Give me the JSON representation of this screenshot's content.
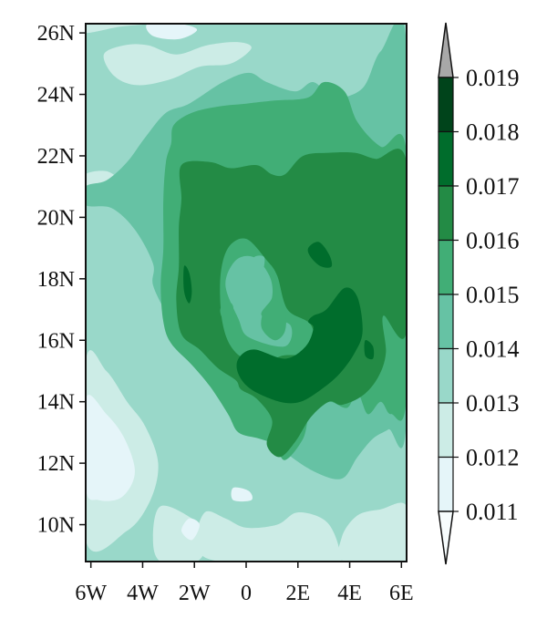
{
  "chart_data": {
    "type": "heatmap",
    "title": "",
    "xlabel": "",
    "ylabel": "",
    "x_ticks": [
      "6W",
      "4W",
      "2W",
      "0",
      "2E",
      "4E",
      "6E"
    ],
    "y_ticks": [
      "10N",
      "12N",
      "14N",
      "16N",
      "18N",
      "20N",
      "22N",
      "24N",
      "26N"
    ],
    "x_tick_values": [
      -6,
      -4,
      -2,
      0,
      2,
      4,
      6
    ],
    "y_tick_values": [
      10,
      12,
      14,
      16,
      18,
      20,
      22,
      24,
      26
    ],
    "xlim": [
      -6.2,
      6.2
    ],
    "ylim": [
      8.8,
      26.3
    ],
    "colorbar": {
      "labels": [
        "0.011",
        "0.012",
        "0.013",
        "0.014",
        "0.015",
        "0.016",
        "0.017",
        "0.018",
        "0.019"
      ],
      "levels": [
        0.011,
        0.012,
        0.013,
        0.014,
        0.015,
        0.016,
        0.017,
        0.018,
        0.019
      ],
      "colors": [
        "#f7fcfd",
        "#e5f5f9",
        "#ccece6",
        "#99d8c9",
        "#66c2a4",
        "#41ae76",
        "#238b45",
        "#006d2c",
        "#00441b"
      ],
      "over_color": "#a8a8a8",
      "extend": "both"
    },
    "regions": [
      {
        "level": 0.014,
        "points": [
          [
            -6.2,
            26.3
          ],
          [
            6.2,
            26.3
          ],
          [
            6.2,
            8.8
          ],
          [
            -6.2,
            8.8
          ]
        ]
      },
      {
        "level": 0.013,
        "points": [
          [
            -6.2,
            26.0
          ],
          [
            -4.9,
            26.2
          ],
          [
            -3.8,
            26.3
          ],
          [
            -6.2,
            26.3
          ]
        ]
      },
      {
        "level": 0.013,
        "points": [
          [
            -5.5,
            25.3
          ],
          [
            -4.7,
            25.6
          ],
          [
            -3.8,
            25.6
          ],
          [
            -2.7,
            25.3
          ],
          [
            -1.5,
            25.6
          ],
          [
            -0.3,
            25.7
          ],
          [
            0.2,
            25.5
          ],
          [
            -0.6,
            25.0
          ],
          [
            -1.8,
            24.9
          ],
          [
            -2.9,
            24.5
          ],
          [
            -4.2,
            24.3
          ],
          [
            -5.1,
            24.6
          ]
        ]
      },
      {
        "level": 0.013,
        "points": [
          [
            -6.2,
            15.3
          ],
          [
            -5.4,
            15.0
          ],
          [
            -4.6,
            14.0
          ],
          [
            -3.9,
            13.2
          ],
          [
            -3.4,
            12.0
          ],
          [
            -3.7,
            10.8
          ],
          [
            -4.6,
            9.8
          ],
          [
            -6.2,
            9.5
          ]
        ]
      },
      {
        "level": 0.013,
        "points": [
          [
            -3.3,
            10.6
          ],
          [
            -2.1,
            10.2
          ],
          [
            -1.5,
            9.6
          ],
          [
            -1.9,
            8.8
          ],
          [
            -3.3,
            8.8
          ],
          [
            -3.6,
            9.6
          ]
        ]
      },
      {
        "level": 0.013,
        "points": [
          [
            -1.6,
            10.4
          ],
          [
            -0.8,
            10.2
          ],
          [
            0.0,
            9.9
          ],
          [
            1.2,
            10.0
          ],
          [
            2.0,
            10.4
          ],
          [
            3.1,
            10.1
          ],
          [
            3.6,
            9.2
          ],
          [
            3.4,
            8.8
          ],
          [
            -1.0,
            8.8
          ],
          [
            -1.9,
            9.4
          ]
        ]
      },
      {
        "level": 0.013,
        "points": [
          [
            4.3,
            10.3
          ],
          [
            5.2,
            10.5
          ],
          [
            6.2,
            10.6
          ],
          [
            6.2,
            8.8
          ],
          [
            3.8,
            8.8
          ],
          [
            3.7,
            9.6
          ]
        ]
      },
      {
        "level": 0.013,
        "points": [
          [
            -6.2,
            21.4
          ],
          [
            -5.4,
            21.5
          ],
          [
            -5.0,
            21.2
          ],
          [
            -5.6,
            20.8
          ],
          [
            -6.2,
            20.9
          ]
        ]
      },
      {
        "level": 0.012,
        "points": [
          [
            -3.8,
            26.3
          ],
          [
            -2.6,
            26.3
          ],
          [
            -1.9,
            26.1
          ],
          [
            -2.6,
            25.8
          ],
          [
            -3.6,
            25.9
          ]
        ]
      },
      {
        "level": 0.012,
        "points": [
          [
            -6.2,
            14.1
          ],
          [
            -5.4,
            13.6
          ],
          [
            -4.7,
            12.8
          ],
          [
            -4.3,
            11.7
          ],
          [
            -4.8,
            10.9
          ],
          [
            -5.7,
            10.8
          ],
          [
            -6.2,
            11.2
          ]
        ]
      },
      {
        "level": 0.012,
        "points": [
          [
            -2.2,
            10.2
          ],
          [
            -1.8,
            10.0
          ],
          [
            -2.1,
            9.5
          ],
          [
            -2.5,
            9.8
          ]
        ]
      },
      {
        "level": 0.012,
        "points": [
          [
            -0.5,
            11.2
          ],
          [
            0.1,
            11.1
          ],
          [
            0.2,
            10.8
          ],
          [
            -0.5,
            10.8
          ]
        ]
      },
      {
        "level": 0.015,
        "points": [
          [
            -6.2,
            20.4
          ],
          [
            -5.2,
            20.3
          ],
          [
            -4.3,
            19.6
          ],
          [
            -3.6,
            18.5
          ],
          [
            -3.6,
            17.8
          ],
          [
            -3.1,
            16.9
          ],
          [
            -2.6,
            16.2
          ],
          [
            -1.6,
            15.6
          ],
          [
            -0.8,
            14.6
          ],
          [
            0.0,
            13.8
          ],
          [
            0.8,
            13.0
          ],
          [
            1.6,
            12.3
          ],
          [
            2.7,
            11.7
          ],
          [
            3.7,
            11.5
          ],
          [
            4.3,
            12.2
          ],
          [
            4.9,
            12.8
          ],
          [
            5.5,
            13.1
          ],
          [
            6.2,
            13.5
          ],
          [
            6.2,
            25.6
          ],
          [
            5.2,
            25.4
          ],
          [
            4.5,
            24.2
          ],
          [
            3.4,
            23.9
          ],
          [
            2.6,
            24.4
          ],
          [
            1.9,
            24.1
          ],
          [
            0.8,
            24.4
          ],
          [
            0.1,
            24.7
          ],
          [
            -0.9,
            24.4
          ],
          [
            -2.2,
            23.7
          ],
          [
            -3.1,
            23.4
          ],
          [
            -3.9,
            22.6
          ],
          [
            -4.6,
            21.8
          ],
          [
            -5.4,
            21.2
          ],
          [
            -6.2,
            21.0
          ]
        ]
      },
      {
        "level": 0.016,
        "points": [
          [
            -2.8,
            23.0
          ],
          [
            -2.1,
            23.4
          ],
          [
            -1.1,
            23.6
          ],
          [
            0.0,
            23.7
          ],
          [
            1.1,
            23.8
          ],
          [
            2.4,
            23.9
          ],
          [
            3.0,
            24.4
          ],
          [
            3.8,
            24.1
          ],
          [
            4.3,
            23.1
          ],
          [
            5.2,
            22.3
          ],
          [
            6.2,
            22.1
          ],
          [
            6.2,
            14.2
          ],
          [
            5.6,
            13.6
          ],
          [
            5.2,
            14.0
          ],
          [
            4.7,
            13.6
          ],
          [
            4.3,
            14.3
          ],
          [
            3.9,
            13.8
          ],
          [
            3.2,
            14.0
          ],
          [
            2.5,
            13.7
          ],
          [
            2.2,
            12.8
          ],
          [
            1.5,
            12.1
          ],
          [
            1.1,
            12.6
          ],
          [
            0.5,
            12.8
          ],
          [
            -0.3,
            13.0
          ],
          [
            -0.7,
            13.6
          ],
          [
            -1.4,
            14.5
          ],
          [
            -2.1,
            15.2
          ],
          [
            -2.9,
            15.9
          ],
          [
            -3.2,
            16.6
          ],
          [
            -3.3,
            17.8
          ],
          [
            -3.2,
            19.0
          ],
          [
            -3.2,
            20.6
          ],
          [
            -3.1,
            21.8
          ],
          [
            -2.9,
            22.4
          ]
        ]
      },
      {
        "level": 0.017,
        "points": [
          [
            -2.5,
            21.7
          ],
          [
            -1.4,
            21.8
          ],
          [
            -0.6,
            21.6
          ],
          [
            0.4,
            21.7
          ],
          [
            1.0,
            21.4
          ],
          [
            1.5,
            21.4
          ],
          [
            2.2,
            22.0
          ],
          [
            3.2,
            22.1
          ],
          [
            4.2,
            22.1
          ],
          [
            5.0,
            21.9
          ],
          [
            6.2,
            21.8
          ],
          [
            6.2,
            16.3
          ],
          [
            5.3,
            16.8
          ],
          [
            5.4,
            15.6
          ],
          [
            5.1,
            14.8
          ],
          [
            4.5,
            14.2
          ],
          [
            3.7,
            13.9
          ],
          [
            3.2,
            14.0
          ],
          [
            2.5,
            13.5
          ],
          [
            1.9,
            12.7
          ],
          [
            1.3,
            12.2
          ],
          [
            0.8,
            12.6
          ],
          [
            1.0,
            13.4
          ],
          [
            0.4,
            14.1
          ],
          [
            -0.2,
            14.4
          ],
          [
            -0.4,
            14.7
          ],
          [
            -1.1,
            15.1
          ],
          [
            -1.8,
            15.7
          ],
          [
            -2.5,
            16.2
          ],
          [
            -2.7,
            17.3
          ],
          [
            -2.6,
            18.4
          ],
          [
            -2.6,
            19.7
          ],
          [
            -2.5,
            20.6
          ]
        ]
      },
      {
        "level": 0.016,
        "points": [
          [
            -1.0,
            18.0
          ],
          [
            -0.7,
            19.0
          ],
          [
            0.0,
            19.3
          ],
          [
            0.8,
            18.6
          ],
          [
            1.2,
            18.1
          ],
          [
            1.6,
            17.0
          ],
          [
            2.5,
            16.5
          ],
          [
            2.6,
            15.6
          ],
          [
            1.4,
            15.5
          ],
          [
            0.6,
            15.2
          ],
          [
            -0.4,
            15.6
          ],
          [
            -0.9,
            16.5
          ]
        ]
      },
      {
        "level": 0.015,
        "points": [
          [
            -0.8,
            17.8
          ],
          [
            -0.4,
            18.6
          ],
          [
            0.3,
            18.7
          ],
          [
            0.9,
            18.1
          ],
          [
            1.0,
            17.4
          ],
          [
            0.6,
            16.8
          ],
          [
            1.7,
            16.5
          ],
          [
            1.5,
            15.8
          ],
          [
            0.1,
            16.1
          ],
          [
            -0.3,
            16.7
          ]
        ]
      },
      {
        "level": 0.016,
        "points": [
          [
            0.7,
            17.0
          ],
          [
            1.1,
            17.3
          ],
          [
            1.5,
            17.0
          ],
          [
            1.5,
            16.3
          ],
          [
            1.1,
            16.0
          ],
          [
            0.6,
            16.4
          ]
        ]
      },
      {
        "level": 0.015,
        "points": [
          [
            0.2,
            18.3
          ],
          [
            0.3,
            18.7
          ],
          [
            0.7,
            18.7
          ],
          [
            0.6,
            18.2
          ]
        ]
      },
      {
        "level": 0.016,
        "points": [
          [
            -1.0,
            17.0
          ],
          [
            -0.8,
            17.3
          ],
          [
            -0.5,
            17.1
          ],
          [
            -0.6,
            16.6
          ],
          [
            -0.9,
            16.7
          ]
        ]
      },
      {
        "level": 0.018,
        "points": [
          [
            -0.3,
            15.4
          ],
          [
            0.3,
            15.7
          ],
          [
            1.5,
            15.4
          ],
          [
            2.3,
            15.8
          ],
          [
            2.6,
            16.4
          ],
          [
            2.4,
            16.6
          ],
          [
            2.6,
            16.8
          ],
          [
            3.1,
            17.0
          ],
          [
            3.8,
            17.7
          ],
          [
            4.3,
            17.4
          ],
          [
            4.5,
            16.3
          ],
          [
            4.2,
            15.6
          ],
          [
            3.6,
            14.9
          ],
          [
            2.9,
            14.4
          ],
          [
            2.1,
            14.0
          ],
          [
            1.3,
            14.0
          ],
          [
            0.2,
            14.4
          ],
          [
            -0.3,
            14.9
          ]
        ]
      },
      {
        "level": 0.018,
        "points": [
          [
            2.4,
            19.0
          ],
          [
            2.8,
            19.2
          ],
          [
            3.2,
            18.8
          ],
          [
            3.3,
            18.4
          ],
          [
            2.9,
            18.4
          ],
          [
            2.5,
            18.7
          ]
        ]
      },
      {
        "level": 0.018,
        "points": [
          [
            -2.4,
            18.4
          ],
          [
            -2.2,
            18.2
          ],
          [
            -2.1,
            17.6
          ],
          [
            -2.2,
            17.2
          ],
          [
            -2.4,
            17.6
          ]
        ]
      },
      {
        "level": 0.018,
        "points": [
          [
            4.6,
            16.0
          ],
          [
            4.9,
            15.8
          ],
          [
            4.9,
            15.4
          ],
          [
            4.6,
            15.5
          ]
        ]
      }
    ]
  }
}
